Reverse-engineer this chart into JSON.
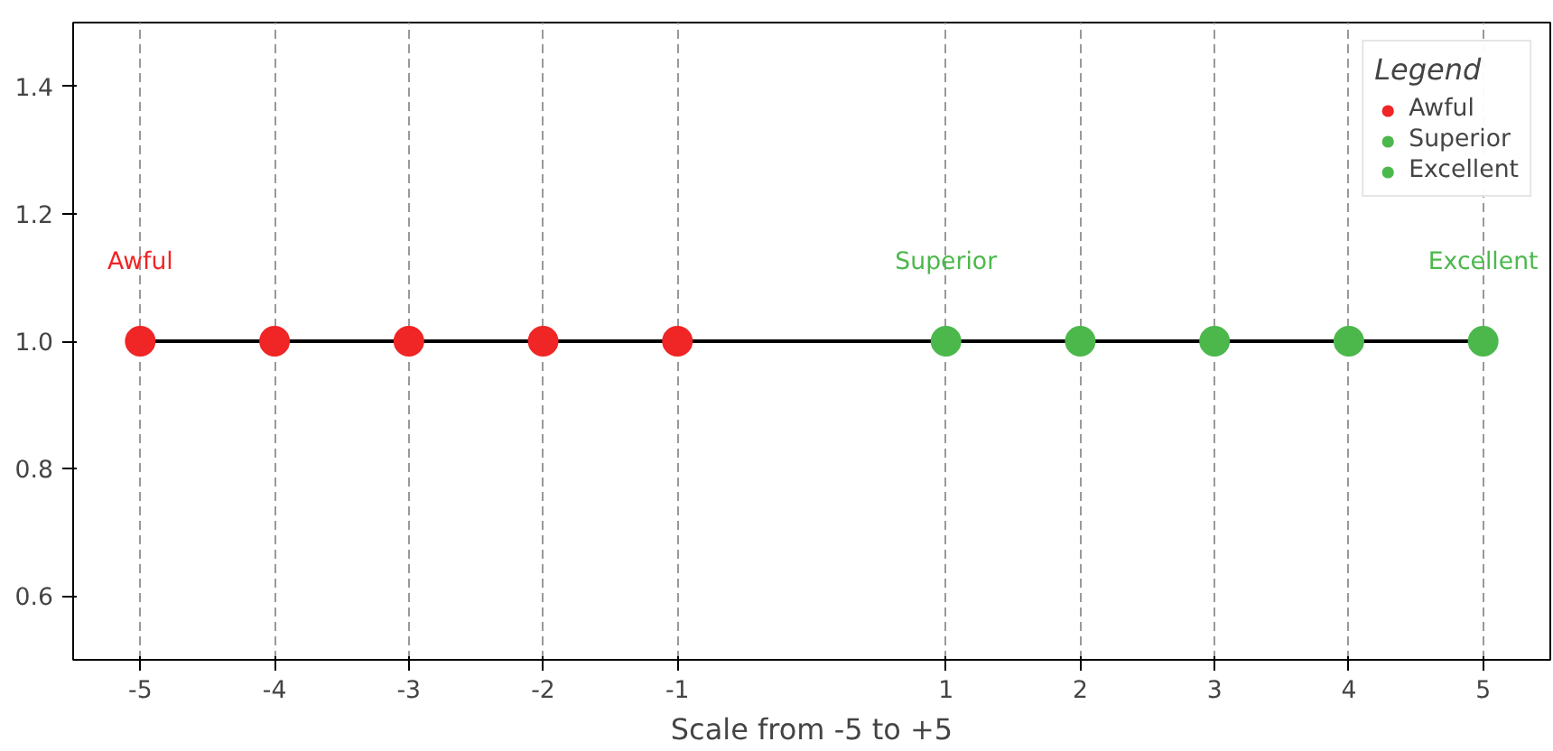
{
  "chart_data": {
    "type": "scatter",
    "xlabel": "Scale from -5 to +5",
    "legend_title": "Legend",
    "legend": "top right",
    "grid": "x",
    "marker": "circle",
    "xlim": [
      -5.5,
      5.5
    ],
    "xticks": [
      -5,
      -4,
      -3,
      -2,
      -1,
      1,
      2,
      3,
      4,
      5
    ],
    "ylim": [
      0.5,
      1.5
    ],
    "yticks": [
      0.6,
      0.8,
      {
        "value": 1,
        "label": "1.0"
      },
      1.2,
      1.4
    ],
    "series": [
      {
        "type": "line",
        "color": "#000000",
        "x": [
          -5,
          5
        ],
        "values": [
          1,
          1
        ],
        "marker": "none",
        "line_style": "solid"
      },
      {
        "name": "Awful",
        "color": "#f02525",
        "x": [
          -5,
          -4,
          -3,
          -2,
          -1
        ],
        "values": [
          1,
          1,
          1,
          1,
          1
        ]
      },
      {
        "name": "Superior",
        "color": "#4cb84c",
        "x": [
          1,
          2,
          3,
          4
        ],
        "values": [
          1,
          1,
          1,
          1
        ]
      },
      {
        "name": "Excellent",
        "color": "#4cb84c",
        "x": [
          5
        ],
        "values": [
          1
        ]
      }
    ],
    "annotations": [
      "Awful",
      "Superior",
      "Excellent"
    ]
  }
}
